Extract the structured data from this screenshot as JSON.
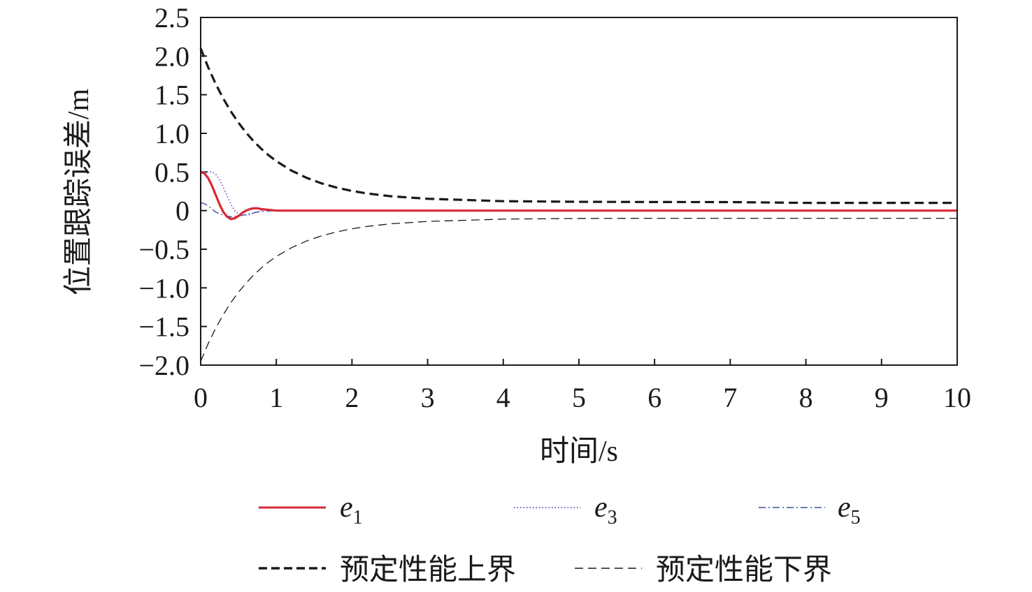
{
  "chart_data": {
    "type": "line",
    "xlabel": "时间/s",
    "ylabel": "位置跟踪误差/m",
    "xlim": [
      0,
      10
    ],
    "ylim": [
      -2.0,
      2.5
    ],
    "xticks": [
      "0",
      "1",
      "2",
      "3",
      "4",
      "5",
      "6",
      "7",
      "8",
      "9",
      "10"
    ],
    "yticks": [
      "−2.0",
      "−1.5",
      "−1.0",
      "−0.5",
      "0",
      "0.5",
      "1.0",
      "1.5",
      "2.0",
      "2.5"
    ],
    "grid": false,
    "legend_position": "bottom",
    "series": [
      {
        "name": "e1",
        "label_main": "e",
        "label_sub": "1",
        "color": "#d62a35",
        "style": "solid",
        "x": [
          0,
          0.05,
          0.1,
          0.15,
          0.2,
          0.25,
          0.3,
          0.35,
          0.4,
          0.45,
          0.5,
          0.55,
          0.6,
          0.65,
          0.7,
          0.75,
          0.8,
          0.9,
          1.0,
          1.2,
          1.5,
          2,
          3,
          4,
          5,
          6,
          7,
          8,
          9,
          10
        ],
        "y": [
          0.5,
          0.48,
          0.42,
          0.32,
          0.2,
          0.08,
          -0.02,
          -0.08,
          -0.11,
          -0.1,
          -0.07,
          -0.03,
          0.0,
          0.02,
          0.03,
          0.03,
          0.02,
          0.01,
          0.0,
          0.0,
          0.0,
          0.0,
          0.0,
          0.0,
          0.0,
          0.0,
          0.0,
          0.0,
          0.0,
          0.0
        ]
      },
      {
        "name": "e3",
        "label_main": "e",
        "label_sub": "3",
        "color": "#7b52c7",
        "style": "dotted",
        "x": [
          0,
          0.1,
          0.15,
          0.2,
          0.25,
          0.3,
          0.35,
          0.4,
          0.45,
          0.5,
          0.55,
          0.6,
          0.65,
          0.7,
          0.8,
          0.9,
          1.0,
          1.5,
          2,
          3,
          4,
          5,
          6,
          7,
          8,
          9,
          10
        ],
        "y": [
          0.5,
          0.5,
          0.5,
          0.47,
          0.4,
          0.3,
          0.19,
          0.08,
          0.0,
          -0.04,
          -0.06,
          -0.06,
          -0.05,
          -0.03,
          0.0,
          0.01,
          0.0,
          0.0,
          0.0,
          0.0,
          0.0,
          0.0,
          0.0,
          0.0,
          0.0,
          0.0,
          0.0
        ]
      },
      {
        "name": "e5",
        "label_main": "e",
        "label_sub": "5",
        "color": "#3a4f9a",
        "style": "dashdot",
        "x": [
          0,
          0.05,
          0.1,
          0.15,
          0.2,
          0.3,
          0.4,
          0.5,
          0.6,
          0.7,
          0.8,
          1.0,
          1.5,
          2,
          3,
          4,
          5,
          6,
          7,
          8,
          9,
          10
        ],
        "y": [
          0.1,
          0.09,
          0.06,
          0.02,
          -0.02,
          -0.06,
          -0.08,
          -0.07,
          -0.05,
          -0.03,
          -0.01,
          0.0,
          0.0,
          0.0,
          0.0,
          0.0,
          0.0,
          0.0,
          0.0,
          0.0,
          0.0,
          0.0
        ]
      },
      {
        "name": "预定性能上界",
        "color": "#1a1a1a",
        "style": "dashed-bold",
        "x": [
          0,
          0.1,
          0.2,
          0.3,
          0.4,
          0.5,
          0.6,
          0.7,
          0.8,
          0.9,
          1.0,
          1.2,
          1.4,
          1.6,
          1.8,
          2.0,
          2.2,
          2.5,
          3,
          4,
          5,
          6,
          7,
          8,
          9,
          10
        ],
        "y": [
          2.1,
          1.853,
          1.637,
          1.448,
          1.282,
          1.137,
          1.01,
          0.898,
          0.801,
          0.715,
          0.64,
          0.518,
          0.424,
          0.352,
          0.297,
          0.255,
          0.222,
          0.187,
          0.153,
          0.122,
          0.114,
          0.111,
          0.11,
          0.1,
          0.1,
          0.1
        ]
      },
      {
        "name": "预定性能下界",
        "color": "#1a1a1a",
        "style": "dashed-thin",
        "x": [
          0,
          0.1,
          0.2,
          0.3,
          0.4,
          0.5,
          0.6,
          0.7,
          0.8,
          0.9,
          1.0,
          1.2,
          1.4,
          1.6,
          1.8,
          2.0,
          2.2,
          2.5,
          3,
          4,
          5,
          6,
          7,
          8,
          9,
          10
        ],
        "y": [
          -1.95,
          -1.72,
          -1.52,
          -1.345,
          -1.19,
          -1.056,
          -0.938,
          -0.834,
          -0.744,
          -0.664,
          -0.594,
          -0.48,
          -0.393,
          -0.326,
          -0.275,
          -0.236,
          -0.205,
          -0.172,
          -0.14,
          -0.11,
          -0.102,
          -0.1,
          -0.1,
          -0.1,
          -0.1,
          -0.1
        ]
      }
    ]
  }
}
